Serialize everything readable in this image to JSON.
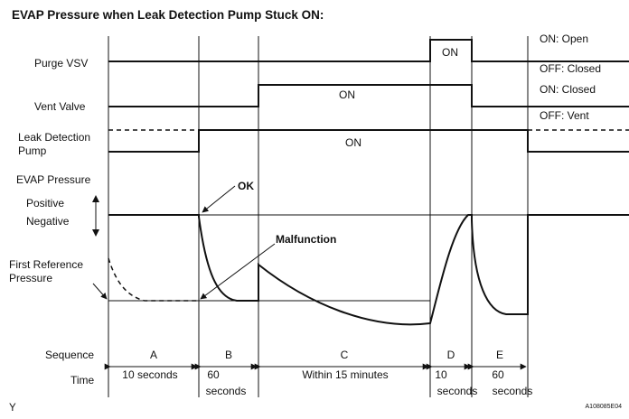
{
  "title": "EVAP Pressure when Leak Detection Pump Stuck ON:",
  "rows": {
    "purge_vsv": "Purge VSV",
    "vent_valve": "Vent Valve",
    "ldp_line1": "Leak Detection",
    "ldp_line2": "Pump",
    "evap_pressure": "EVAP Pressure",
    "positive": "Positive",
    "negative": "Negative",
    "first_ref_line1": "First Reference",
    "first_ref_line2": "Pressure",
    "sequence": "Sequence",
    "time": "Time"
  },
  "states": {
    "purge_on": "ON: Open",
    "purge_off": "OFF: Closed",
    "vent_on": "ON: Closed",
    "vent_off": "OFF: Vent",
    "on_label": "ON"
  },
  "annotations": {
    "ok": "OK",
    "malfunction": "Malfunction"
  },
  "segments": [
    {
      "id": "A",
      "time_line1": "10 seconds",
      "time_line2": ""
    },
    {
      "id": "B",
      "time_line1": "60",
      "time_line2": "seconds"
    },
    {
      "id": "C",
      "time_line1": "Within 15 minutes",
      "time_line2": ""
    },
    {
      "id": "D",
      "time_line1": "10",
      "time_line2": "seconds"
    },
    {
      "id": "E",
      "time_line1": "60",
      "time_line2": "seconds"
    }
  ],
  "footer": {
    "left_mark": "Y",
    "figure_code": "A108085E04"
  }
}
